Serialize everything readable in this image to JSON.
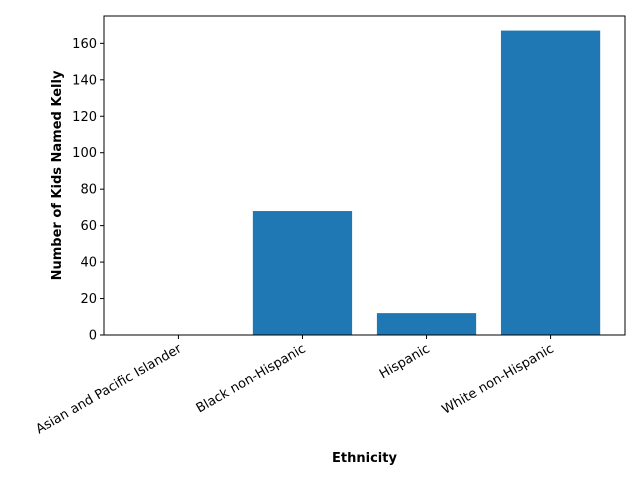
{
  "chart_data": {
    "type": "bar",
    "categories": [
      "Asian and Pacific Islander",
      "Black non-Hispanic",
      "Hispanic",
      "White non-Hispanic"
    ],
    "values": [
      0,
      68,
      12,
      167
    ],
    "xlabel": "Ethnicity",
    "ylabel": "Number of Kids Named Kelly",
    "ylim": [
      0,
      175
    ],
    "yticks": [
      0,
      20,
      40,
      60,
      80,
      100,
      120,
      140,
      160
    ],
    "grid": false,
    "bar_color": "#1f77b4"
  }
}
